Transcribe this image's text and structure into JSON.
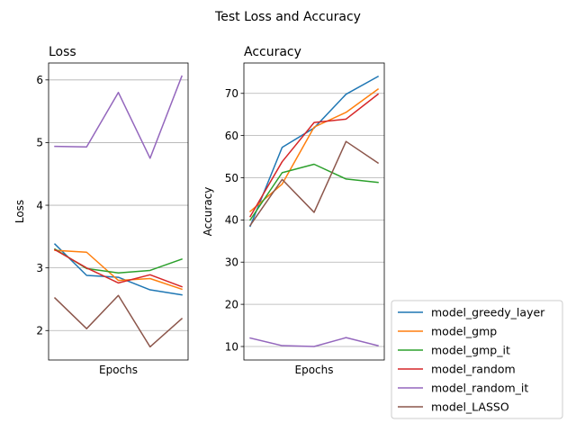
{
  "figure_title": "Test Loss and Accuracy",
  "colors": {
    "model_greedy_layer": "#1f77b4",
    "model_gmp": "#ff7f0e",
    "model_gmp_it": "#2ca02c",
    "model_random": "#d62728",
    "model_random_it": "#9467bd",
    "model_LASSO": "#8c564b"
  },
  "chart_data": [
    {
      "type": "line",
      "title": "Loss",
      "xlabel": "Epochs",
      "ylabel": "Loss",
      "ylim": [
        1.53,
        6.27
      ],
      "yticks": [
        2,
        3,
        4,
        5,
        6
      ],
      "grid": "y",
      "x": [
        1,
        2,
        3,
        4,
        5
      ],
      "series": [
        {
          "name": "model_greedy_layer",
          "values": [
            3.38,
            2.88,
            2.85,
            2.65,
            2.57
          ]
        },
        {
          "name": "model_gmp",
          "values": [
            3.28,
            3.25,
            2.8,
            2.83,
            2.66
          ]
        },
        {
          "name": "model_gmp_it",
          "values": [
            3.3,
            2.99,
            2.92,
            2.96,
            3.14
          ]
        },
        {
          "name": "model_random",
          "values": [
            3.29,
            3.0,
            2.76,
            2.89,
            2.7
          ]
        },
        {
          "name": "model_random_it",
          "values": [
            4.94,
            4.93,
            5.8,
            4.75,
            6.06
          ]
        },
        {
          "name": "model_LASSO",
          "values": [
            2.52,
            2.03,
            2.56,
            1.74,
            2.19
          ]
        }
      ]
    },
    {
      "type": "line",
      "title": "Accuracy",
      "xlabel": "Epochs",
      "ylabel": "Accuracy",
      "ylim": [
        6.8,
        77.2
      ],
      "yticks": [
        10,
        20,
        30,
        40,
        50,
        60,
        70
      ],
      "grid": "y",
      "x": [
        1,
        2,
        3,
        4,
        5
      ],
      "series": [
        {
          "name": "model_greedy_layer",
          "values": [
            38.5,
            57.2,
            61.8,
            69.8,
            74.0
          ]
        },
        {
          "name": "model_gmp",
          "values": [
            42.0,
            48.5,
            62.0,
            65.5,
            71.0
          ]
        },
        {
          "name": "model_gmp_it",
          "values": [
            40.0,
            51.2,
            53.2,
            49.7,
            48.9
          ]
        },
        {
          "name": "model_random",
          "values": [
            40.8,
            53.8,
            63.1,
            63.9,
            69.8
          ]
        },
        {
          "name": "model_random_it",
          "values": [
            12.0,
            10.2,
            10.0,
            12.1,
            10.2
          ]
        },
        {
          "name": "model_LASSO",
          "values": [
            38.7,
            49.6,
            41.8,
            58.6,
            53.5
          ]
        }
      ]
    }
  ],
  "legend": {
    "placement": "lower-right",
    "entries": [
      "model_greedy_layer",
      "model_gmp",
      "model_gmp_it",
      "model_random",
      "model_random_it",
      "model_LASSO"
    ]
  }
}
